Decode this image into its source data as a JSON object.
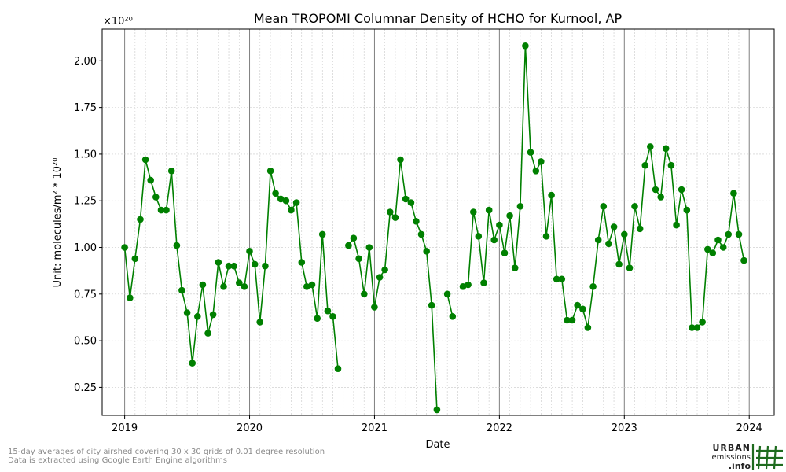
{
  "chart_data": {
    "type": "line",
    "title": "Mean TROPOMI Columnar Density of HCHO for Kurnool, AP",
    "xlabel": "Date",
    "ylabel": "Unit: molecules/m² * 10²⁰",
    "y_multiplier_label": "×10²⁰",
    "xlim": [
      2018.82,
      2024.2
    ],
    "ylim": [
      0.1,
      2.17
    ],
    "x_ticks": [
      2019,
      2020,
      2021,
      2022,
      2023,
      2024
    ],
    "x_tick_labels": [
      "2019",
      "2020",
      "2021",
      "2022",
      "2023",
      "2024"
    ],
    "y_ticks": [
      0.25,
      0.5,
      0.75,
      1.0,
      1.25,
      1.5,
      1.75,
      2.0
    ],
    "y_tick_labels": [
      "0.25",
      "0.50",
      "0.75",
      "1.00",
      "1.25",
      "1.50",
      "1.75",
      "2.00"
    ],
    "grid": true,
    "color": "#008000",
    "series": [
      {
        "x": [
          2019.0,
          2019.042,
          2019.083,
          2019.125,
          2019.167,
          2019.208,
          2019.25,
          2019.292,
          2019.333,
          2019.375,
          2019.417,
          2019.458,
          2019.5,
          2019.542,
          2019.583,
          2019.625,
          2019.667,
          2019.708,
          2019.75,
          2019.792,
          2019.833,
          2019.875,
          2019.917,
          2019.958,
          2020.0,
          2020.042,
          2020.083,
          2020.125,
          2020.167,
          2020.208,
          2020.25,
          2020.292,
          2020.333,
          2020.375,
          2020.417,
          2020.458,
          2020.5,
          2020.542,
          2020.583,
          2020.625,
          2020.667,
          2020.708,
          null,
          2020.792,
          2020.833,
          2020.875,
          2020.917,
          2020.958,
          2021.0,
          2021.042,
          2021.083,
          2021.125,
          2021.167,
          2021.208,
          2021.25,
          2021.292,
          2021.333,
          2021.375,
          2021.417,
          2021.458,
          2021.5,
          null,
          2021.583,
          2021.625,
          null,
          2021.708,
          2021.75,
          2021.792,
          2021.833,
          2021.875,
          2021.917,
          2021.958,
          2022.0,
          2022.042,
          2022.083,
          2022.125,
          2022.167,
          2022.208,
          2022.25,
          2022.292,
          2022.333,
          2022.375,
          2022.417,
          2022.458,
          2022.5,
          2022.542,
          2022.583,
          2022.625,
          2022.667,
          2022.708,
          2022.75,
          2022.792,
          2022.833,
          2022.875,
          2022.917,
          2022.958,
          2023.0,
          2023.042,
          2023.083,
          2023.125,
          2023.167,
          2023.208,
          2023.25,
          2023.292,
          2023.333,
          2023.375,
          2023.417,
          2023.458,
          2023.5,
          2023.542,
          2023.583,
          2023.625,
          2023.667,
          2023.708,
          2023.75,
          2023.792,
          2023.833,
          2023.875,
          2023.917,
          2023.958
        ],
        "y": [
          1.0,
          0.73,
          0.94,
          1.15,
          1.47,
          1.36,
          1.27,
          1.2,
          1.2,
          1.41,
          1.01,
          0.77,
          0.65,
          0.38,
          0.63,
          0.8,
          0.54,
          0.64,
          0.92,
          0.79,
          0.9,
          0.9,
          0.81,
          0.79,
          0.98,
          0.91,
          0.6,
          0.9,
          1.41,
          1.29,
          1.26,
          1.25,
          1.2,
          1.24,
          0.92,
          0.79,
          0.8,
          0.62,
          1.07,
          0.66,
          0.63,
          0.35,
          null,
          1.01,
          1.05,
          0.94,
          0.75,
          1.0,
          0.68,
          0.84,
          0.88,
          1.19,
          1.16,
          1.47,
          1.26,
          1.24,
          1.14,
          1.07,
          0.98,
          0.69,
          0.13,
          null,
          0.75,
          0.63,
          null,
          0.79,
          0.8,
          1.19,
          1.06,
          0.81,
          1.2,
          1.04,
          1.12,
          0.97,
          1.17,
          0.89,
          1.22,
          2.08,
          1.51,
          1.41,
          1.46,
          1.06,
          1.28,
          0.83,
          0.83,
          0.61,
          0.61,
          0.69,
          0.67,
          0.57,
          0.79,
          1.04,
          1.22,
          1.02,
          1.11,
          0.91,
          1.07,
          0.89,
          1.22,
          1.1,
          1.44,
          1.54,
          1.31,
          1.27,
          1.53,
          1.44,
          1.12,
          1.31,
          1.2,
          0.57,
          0.57,
          0.6,
          0.99,
          0.97,
          1.04,
          1.0,
          1.07,
          1.29,
          1.07,
          0.93
        ]
      }
    ]
  },
  "footer": {
    "note_line1": "15-day averages of city airshed covering 30 x 30 grids of 0.01 degree resolution",
    "note_line2": "Data is extracted using Google Earth Engine algorithms"
  },
  "logo": {
    "line1": "URBAN",
    "line2": "emissions",
    "line3": ".info"
  }
}
